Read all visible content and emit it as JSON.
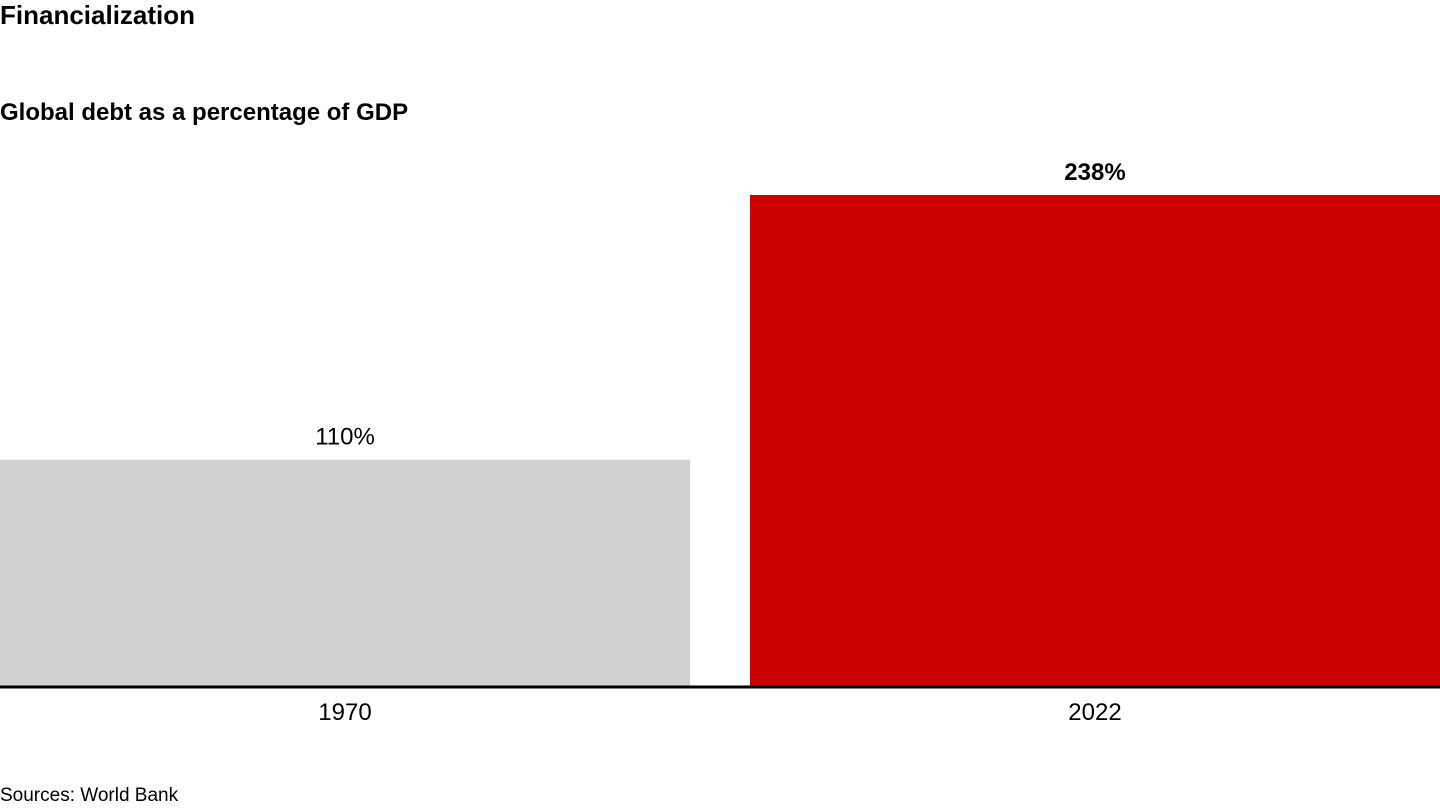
{
  "title": "Financialization",
  "subtitle": "Global debt as a percentage of GDP",
  "source": "Sources: World Bank",
  "colors": {
    "bar_1970": "#d0d0d0",
    "bar_2022": "#cc0000",
    "axis": "#000000"
  },
  "chart_data": {
    "type": "bar",
    "categories": [
      "1970",
      "2022"
    ],
    "values": [
      110,
      238
    ],
    "value_labels": [
      "110%",
      "238%"
    ],
    "emphasized": [
      false,
      true
    ],
    "ylim": [
      0,
      238
    ],
    "unit": "%",
    "grid": false,
    "legend": "none"
  }
}
